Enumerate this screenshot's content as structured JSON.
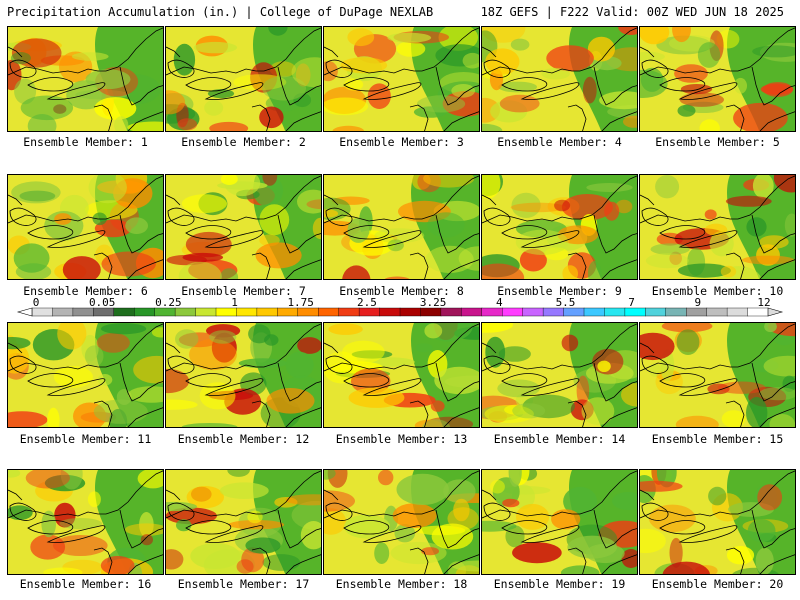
{
  "header": {
    "left": "Precipitation Accumulation (in.) | College of DuPage NEXLAB",
    "right": "18Z GEFS | F222 Valid: 00Z WED JUN 18 2025"
  },
  "colorbar": {
    "labels": [
      "0",
      "0.05",
      "0.25",
      "1",
      "1.75",
      "2.5",
      "3.25",
      "4",
      "5.5",
      "7",
      "9",
      "12"
    ],
    "colors": [
      "#e0e0e0",
      "#b4b4b4",
      "#909090",
      "#6e6e6e",
      "#1e6e1e",
      "#289628",
      "#50b432",
      "#8cc83c",
      "#c8e632",
      "#ffff00",
      "#ffe600",
      "#ffc800",
      "#ffaa00",
      "#ff8c00",
      "#ff6400",
      "#f03c14",
      "#e61e1e",
      "#c80a0a",
      "#aa0000",
      "#8c0000",
      "#a0145a",
      "#c8148c",
      "#e628c8",
      "#ff3cff",
      "#c864ff",
      "#9678ff",
      "#64a0ff",
      "#3cc8ff",
      "#28e6f0",
      "#00ffff",
      "#50d2dc",
      "#78b4b4",
      "#a0a0a0",
      "#bebebe",
      "#dcdcdc",
      "#ffffff"
    ]
  },
  "members": [
    {
      "label": "Ensemble Member: 1"
    },
    {
      "label": "Ensemble Member: 2"
    },
    {
      "label": "Ensemble Member: 3"
    },
    {
      "label": "Ensemble Member: 4"
    },
    {
      "label": "Ensemble Member: 5"
    },
    {
      "label": "Ensemble Member: 6"
    },
    {
      "label": "Ensemble Member: 7"
    },
    {
      "label": "Ensemble Member: 8"
    },
    {
      "label": "Ensemble Member: 9"
    },
    {
      "label": "Ensemble Member: 10"
    },
    {
      "label": "Ensemble Member: 11"
    },
    {
      "label": "Ensemble Member: 12"
    },
    {
      "label": "Ensemble Member: 13"
    },
    {
      "label": "Ensemble Member: 14"
    },
    {
      "label": "Ensemble Member: 15"
    },
    {
      "label": "Ensemble Member: 16"
    },
    {
      "label": "Ensemble Member: 17"
    },
    {
      "label": "Ensemble Member: 18"
    },
    {
      "label": "Ensemble Member: 19"
    },
    {
      "label": "Ensemble Member: 20"
    }
  ]
}
